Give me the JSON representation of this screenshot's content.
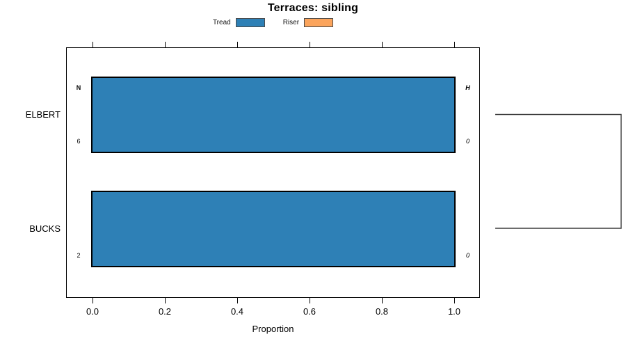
{
  "title": "Terraces: sibling",
  "legend": {
    "items": [
      {
        "label": "Tread",
        "color": "#2E80B6"
      },
      {
        "label": "Riser",
        "color": "#FBA45C"
      }
    ]
  },
  "chart_data": {
    "type": "bar",
    "orientation": "horizontal",
    "stacked": true,
    "title": "Terraces: sibling",
    "xlabel": "Proportion",
    "ylabel": "",
    "categories": [
      "ELBERT",
      "BUCKS"
    ],
    "series": [
      {
        "name": "Tread",
        "color": "#2E80B6",
        "values": [
          1.0,
          1.0
        ]
      },
      {
        "name": "Riser",
        "color": "#FBA45C",
        "values": [
          0.0,
          0.0
        ]
      }
    ],
    "annotations": {
      "left_header": "N",
      "right_header": "H",
      "left_values": [
        "6",
        "2"
      ],
      "right_values": [
        "0",
        "0"
      ]
    },
    "xlim": [
      -0.07,
      1.07
    ],
    "x_ticks": [
      0.0,
      0.2,
      0.4,
      0.6,
      0.8,
      1.0
    ],
    "x_tick_labels": [
      "0.0",
      "0.2",
      "0.4",
      "0.6",
      "0.8",
      "1.0"
    ],
    "grid": false,
    "legend_position": "top-center",
    "axis_sides": [
      "bottom-labeled",
      "top-ticks-only"
    ],
    "dendrogram": {
      "side": "right",
      "merged_leaves": [
        "ELBERT",
        "BUCKS"
      ]
    },
    "colors": {
      "bar_border": "#000000",
      "panel_border": "#000000",
      "dendrogram_line": "#3c3c3c"
    }
  }
}
